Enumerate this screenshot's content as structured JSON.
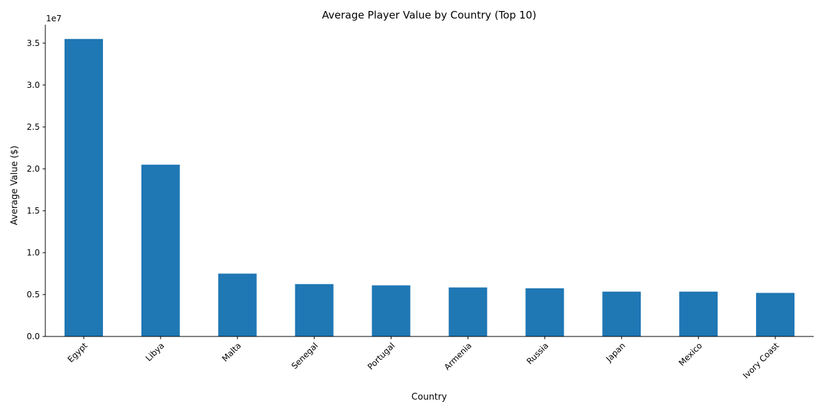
{
  "chart_data": {
    "type": "bar",
    "title": "Average Player Value by Country (Top 10)",
    "xlabel": "Country",
    "ylabel": "Average Value ($)",
    "offset_label": "1e7",
    "categories": [
      "Egypt",
      "Libya",
      "Malta",
      "Senegal",
      "Portugal",
      "Armenia",
      "Russia",
      "Japan",
      "Mexico",
      "Ivory Coast"
    ],
    "values": [
      35500000,
      20500000,
      7500000,
      6250000,
      6100000,
      5850000,
      5750000,
      5350000,
      5350000,
      5200000
    ],
    "ylim": [
      0,
      37200000
    ],
    "yticks": [
      0,
      5000000,
      10000000,
      15000000,
      20000000,
      25000000,
      30000000,
      35000000
    ],
    "ytick_labels": [
      "0.0",
      "0.5",
      "1.0",
      "1.5",
      "2.0",
      "2.5",
      "3.0",
      "3.5"
    ],
    "bar_color": "#1f77b4",
    "grid": false,
    "legend": false
  }
}
